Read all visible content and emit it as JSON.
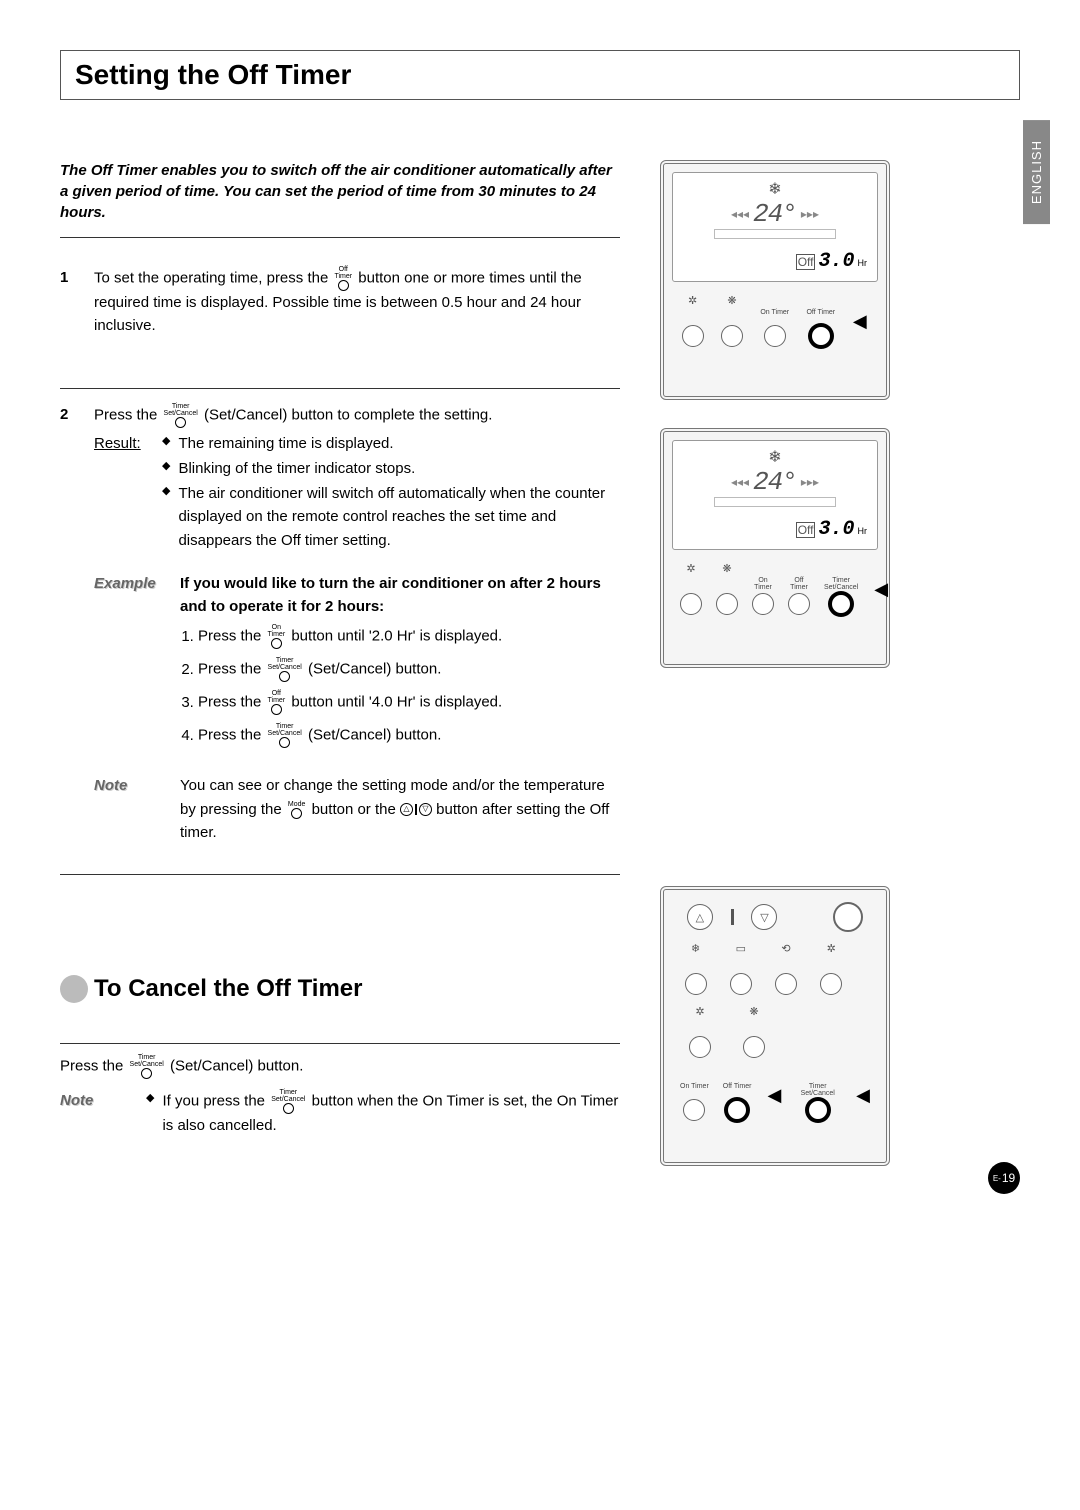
{
  "language_tab": "ENGLISH",
  "title": "Setting the Off Timer",
  "intro": "The Off Timer enables you to switch off the air conditioner automatically after a given period of time. You can set the period of time from 30 minutes to 24 hours.",
  "step1": {
    "num": "1",
    "before": "To set the operating time, press the ",
    "icon_top": "Off",
    "icon_mid": "Timer",
    "after": " button one or more times until the required time is displayed. Possible time is between 0.5 hour and 24 hour inclusive."
  },
  "step2": {
    "num": "2",
    "before": "Press the ",
    "icon_top": "Timer",
    "icon_mid": "Set/Cancel",
    "after": " (Set/Cancel) button to complete the setting.",
    "result_label": "Result:",
    "bullets": [
      "The remaining time is displayed.",
      "Blinking of the timer indicator stops.",
      "The air conditioner will switch off automatically when the counter displayed on the remote control reaches the set time and disappears the Off timer setting."
    ]
  },
  "example": {
    "label": "Example",
    "heading": "If you would like to turn the air conditioner on after 2 hours and to operate it for 2 hours:",
    "s1_before": "Press the ",
    "s1_icon_top": "On",
    "s1_icon_mid": "Timer",
    "s1_after": " button until '2.0 Hr' is displayed.",
    "s2_before": "Press the ",
    "s2_icon_top": "Timer",
    "s2_icon_mid": "Set/Cancel",
    "s2_after": " (Set/Cancel) button.",
    "s3_before": "Press the ",
    "s3_icon_top": "Off",
    "s3_icon_mid": "Timer",
    "s3_after": " button until '4.0 Hr' is displayed.",
    "s4_before": "Press the ",
    "s4_icon_top": "Timer",
    "s4_icon_mid": "Set/Cancel",
    "s4_after": " (Set/Cancel) button."
  },
  "note": {
    "label": "Note",
    "before": "You can see or change the setting mode and/or the temperature by pressing the ",
    "icon_top": "Mode",
    "mid": " button or the ",
    "after": " button after setting the Off timer."
  },
  "subtitle": "To Cancel the Off Timer",
  "cancel": {
    "before": "Press the ",
    "icon_top": "Timer",
    "icon_mid": "Set/Cancel",
    "after": " (Set/Cancel) button."
  },
  "note2": {
    "label": "Note",
    "before": "If you press the ",
    "icon_top": "Timer",
    "icon_mid": "Set/Cancel",
    "after": " button when the On Timer is set, the On Timer is also cancelled."
  },
  "remote1": {
    "temp": "24",
    "timer_val": "3.0",
    "hr": "Hr",
    "off_label": "Off",
    "btns": [
      {
        "ico": "✲",
        "lbl": ""
      },
      {
        "ico": "❋",
        "lbl": ""
      },
      {
        "ico": "",
        "lbl": "On Timer"
      },
      {
        "ico": "",
        "lbl": "Off Timer",
        "hl": true
      }
    ]
  },
  "remote2": {
    "temp": "24",
    "timer_val": "3.0",
    "hr": "Hr",
    "off_label": "Off",
    "btns": [
      {
        "ico": "✲",
        "lbl": ""
      },
      {
        "ico": "❋",
        "lbl": ""
      },
      {
        "ico": "",
        "lbl": "On Timer"
      },
      {
        "ico": "",
        "lbl": "Off Timer"
      },
      {
        "ico": "",
        "lbl": "Timer Set/Cancel",
        "hl": true
      }
    ]
  },
  "remote3": {
    "rows": [
      [
        {
          "ico": "❄",
          "lbl": ""
        },
        {
          "ico": "▭",
          "lbl": ""
        },
        {
          "ico": "⟲",
          "lbl": ""
        },
        {
          "ico": "✲",
          "lbl": ""
        }
      ],
      [
        {
          "ico": "✲",
          "lbl": ""
        },
        {
          "ico": "❋",
          "lbl": ""
        }
      ],
      [
        {
          "ico": "",
          "lbl": "On Timer"
        },
        {
          "ico": "",
          "lbl": "Off Timer",
          "hl": true
        },
        {
          "ico": "",
          "lbl": "Timer Set/Cancel",
          "hl": true
        }
      ]
    ]
  },
  "page_prefix": "E-",
  "page_number": "19"
}
